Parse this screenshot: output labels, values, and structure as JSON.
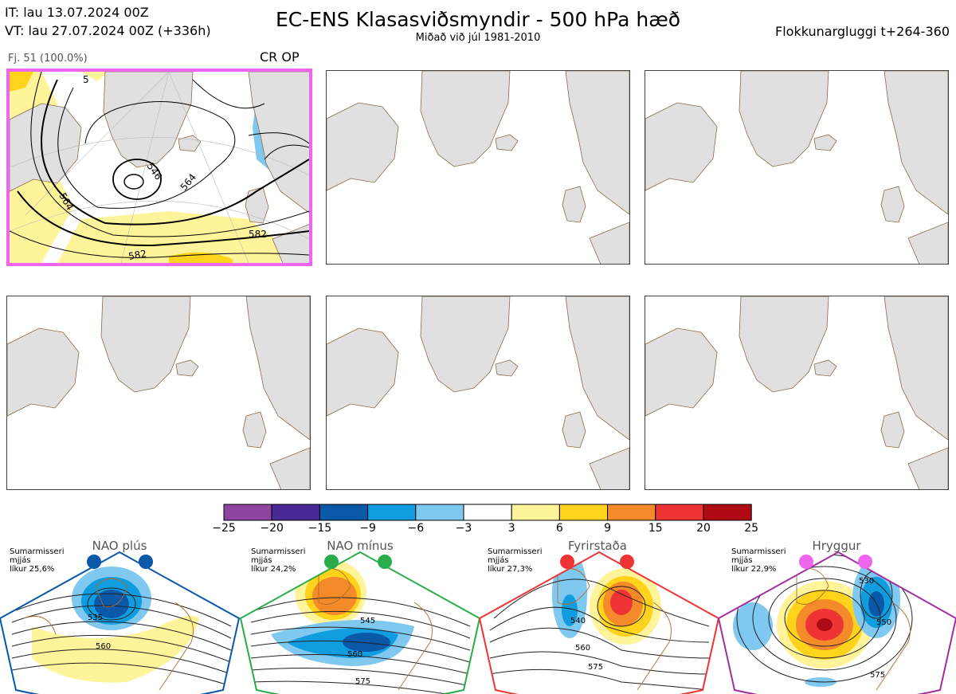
{
  "header": {
    "it_line": "IT: lau 13.07.2024 00Z",
    "vt_line": "VT: lau 27.07.2024 00Z  (+336h)",
    "title": "EC-ENS Klasasviðsmyndir - 500 hPa hæð",
    "subtitle": "Miðað við júl 1981-2010",
    "window": "Flokkunargluggi t+264-360"
  },
  "main_panel": {
    "members": "Fj. 51 (100.0%)",
    "labels": "CR OP",
    "contour_labels": [
      "546",
      "564",
      "564",
      "582",
      "582",
      "5"
    ]
  },
  "colorbar": {
    "ticks": [
      "−25",
      "−20",
      "−15",
      "−9",
      "−6",
      "−3",
      "3",
      "6",
      "9",
      "15",
      "20",
      "25"
    ],
    "colors": [
      "#8e44a0",
      "#4a2a96",
      "#0a58a8",
      "#0f9de0",
      "#7fc8f0",
      "#ffffff",
      "#fff49a",
      "#ffd21c",
      "#f58a2a",
      "#ee3434",
      "#b00a14"
    ]
  },
  "regimes": [
    {
      "title": "NAO plús",
      "season": "Sumarmisseri",
      "mean": "mjjás",
      "prob": "líkur 25,6%",
      "color": "#0a58a8",
      "contours": [
        "535",
        "560"
      ]
    },
    {
      "title": "NAO mínus",
      "season": "Sumarmisseri",
      "mean": "mjjás",
      "prob": "líkur 24,2%",
      "color": "#2aac4a",
      "contours": [
        "545",
        "560",
        "575"
      ]
    },
    {
      "title": "Fyrirstaða",
      "season": "Sumarmisseri",
      "mean": "mjjás",
      "prob": "líkur 27,3%",
      "color": "#ee3434",
      "contours": [
        "540",
        "560",
        "575"
      ]
    },
    {
      "title": "Hryggur",
      "season": "Sumarmisseri",
      "mean": "mjjás",
      "prob": "líkur 22,9%",
      "color": "#a030a0",
      "dot_color": "#ee66ee",
      "contours": [
        "530",
        "550",
        "575"
      ]
    }
  ]
}
